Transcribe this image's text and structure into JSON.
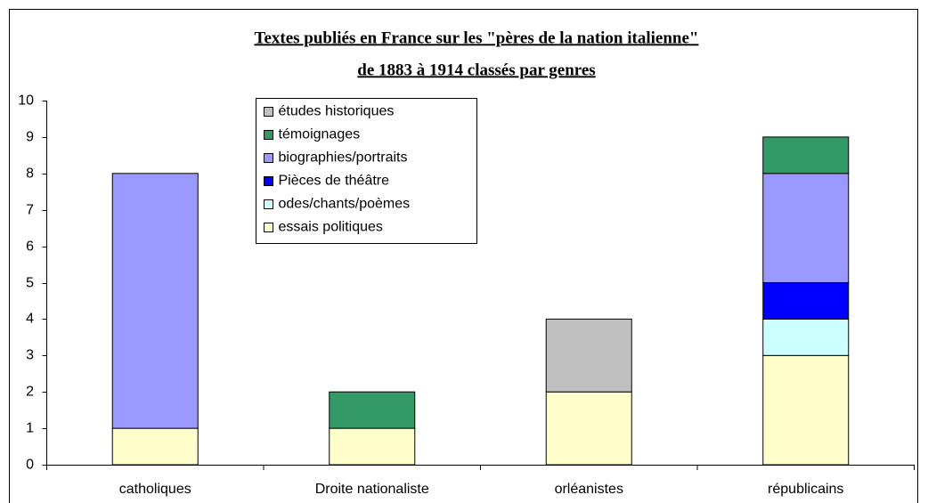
{
  "chart_data": {
    "type": "stacked_bar",
    "title": [
      "Textes publiés en France sur les \"pères de la nation italienne\"",
      "de 1883 à 1914  classés par genres"
    ],
    "categories": [
      "catholiques",
      "Droite nationaliste",
      "orléanistes",
      "républicains"
    ],
    "series": [
      {
        "name": "essais politiques",
        "color": "#ffffcc",
        "values": [
          1,
          1,
          2,
          3
        ]
      },
      {
        "name": "odes/chants/poèmes",
        "color": "#ccffff",
        "values": [
          0,
          0,
          0,
          1
        ]
      },
      {
        "name": "Pièces de théâtre",
        "color": "#0000ff",
        "values": [
          0,
          0,
          0,
          1
        ]
      },
      {
        "name": "biographies/portraits",
        "color": "#9999ff",
        "values": [
          7,
          0,
          0,
          3
        ]
      },
      {
        "name": "témoignages",
        "color": "#339966",
        "values": [
          0,
          1,
          0,
          1
        ]
      },
      {
        "name": "études historiques",
        "color": "#c0c0c0",
        "values": [
          0,
          0,
          2,
          0
        ]
      }
    ],
    "ylim": [
      0,
      10
    ],
    "yticks": [
      0,
      1,
      2,
      3,
      4,
      5,
      6,
      7,
      8,
      9,
      10
    ],
    "legend": "top-left"
  }
}
